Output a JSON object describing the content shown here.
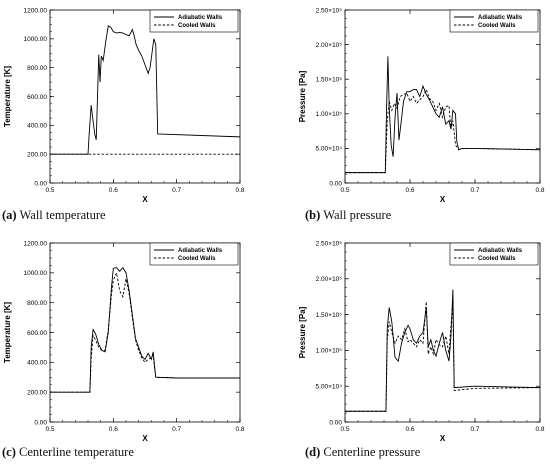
{
  "colors": {
    "adiabatic": "#000000",
    "cooled": "#000000",
    "axis": "#000000"
  },
  "panels": [
    {
      "tag": "(a)",
      "title": "Wall temperature"
    },
    {
      "tag": "(b)",
      "title": "Wall pressure"
    },
    {
      "tag": "(c)",
      "title": "Centerline temperature"
    },
    {
      "tag": "(d)",
      "title": "Centerline pressure"
    }
  ],
  "chart_data": [
    {
      "type": "line",
      "title": "",
      "xlabel": "X",
      "ylabel": "Temperature [K]",
      "xlim": [
        0.5,
        0.8
      ],
      "ylim": [
        0,
        1200
      ],
      "xticks": [
        0.5,
        0.6,
        0.7,
        0.8
      ],
      "xtick_labels": [
        "0.5",
        "0.6",
        "0.7",
        "0.8"
      ],
      "yticks": [
        0,
        200,
        400,
        600,
        800,
        1000,
        1200
      ],
      "ytick_labels": [
        "0.00",
        "200.00",
        "400.00",
        "600.00",
        "800.00",
        "1000.00",
        "1200.00"
      ],
      "legend": "top-right",
      "series": [
        {
          "name": "Adiabatic Walls",
          "style": "solid",
          "x": [
            0.5,
            0.56,
            0.562,
            0.565,
            0.568,
            0.571,
            0.573,
            0.575,
            0.577,
            0.579,
            0.581,
            0.584,
            0.588,
            0.592,
            0.596,
            0.6,
            0.605,
            0.61,
            0.615,
            0.62,
            0.625,
            0.63,
            0.633,
            0.636,
            0.64,
            0.645,
            0.65,
            0.655,
            0.658,
            0.661,
            0.664,
            0.667,
            0.67,
            0.8
          ],
          "y": [
            200,
            200,
            350,
            540,
            430,
            330,
            300,
            600,
            890,
            700,
            880,
            850,
            980,
            1090,
            1080,
            1050,
            1040,
            1045,
            1040,
            1030,
            1020,
            1065,
            1020,
            960,
            920,
            880,
            820,
            760,
            800,
            900,
            1000,
            960,
            340,
            320
          ]
        },
        {
          "name": "Cooled Walls",
          "style": "dashed",
          "x": [
            0.5,
            0.8
          ],
          "y": [
            200,
            200
          ]
        }
      ]
    },
    {
      "type": "line",
      "title": "",
      "xlabel": "X",
      "ylabel": "Pressure [Pa]",
      "xlim": [
        0.5,
        0.8
      ],
      "ylim": [
        0,
        250000
      ],
      "xticks": [
        0.5,
        0.6,
        0.7,
        0.8
      ],
      "xtick_labels": [
        "0.5",
        "0.6",
        "0.7",
        "0.8"
      ],
      "yticks": [
        0,
        50000,
        100000,
        150000,
        200000,
        250000
      ],
      "ytick_labels": [
        "0.00",
        "5.00×10⁴",
        "1.00×10⁵",
        "1.50×10⁵",
        "2.00×10⁵",
        "2.50×10⁵"
      ],
      "legend": "top-right",
      "series": [
        {
          "name": "Adiabatic Walls",
          "style": "solid",
          "x": [
            0.5,
            0.562,
            0.564,
            0.566,
            0.568,
            0.571,
            0.574,
            0.577,
            0.58,
            0.583,
            0.586,
            0.59,
            0.595,
            0.6,
            0.605,
            0.61,
            0.615,
            0.62,
            0.625,
            0.63,
            0.635,
            0.64,
            0.645,
            0.65,
            0.655,
            0.66,
            0.663,
            0.666,
            0.67,
            0.672,
            0.675,
            0.68,
            0.7,
            0.8
          ],
          "y": [
            15000,
            15000,
            110000,
            183000,
            110000,
            55000,
            38000,
            95000,
            130000,
            62000,
            85000,
            118000,
            132000,
            132000,
            135000,
            135000,
            125000,
            140000,
            128000,
            120000,
            110000,
            100000,
            95000,
            110000,
            85000,
            90000,
            78000,
            105000,
            100000,
            60000,
            48000,
            50000,
            50000,
            48000
          ]
        },
        {
          "name": "Cooled Walls",
          "style": "dashed",
          "x": [
            0.5,
            0.562,
            0.565,
            0.568,
            0.572,
            0.576,
            0.58,
            0.585,
            0.59,
            0.595,
            0.6,
            0.605,
            0.61,
            0.615,
            0.62,
            0.625,
            0.63,
            0.635,
            0.64,
            0.645,
            0.65,
            0.655,
            0.66,
            0.663,
            0.666,
            0.67,
            0.675,
            0.68,
            0.7,
            0.8
          ],
          "y": [
            15000,
            15000,
            90000,
            118000,
            105000,
            115000,
            108000,
            125000,
            128000,
            130000,
            118000,
            125000,
            115000,
            120000,
            125000,
            135000,
            122000,
            118000,
            105000,
            115000,
            95000,
            110000,
            112000,
            78000,
            90000,
            55000,
            48000,
            50000,
            50000,
            48000
          ]
        }
      ]
    },
    {
      "type": "line",
      "title": "",
      "xlabel": "X",
      "ylabel": "Temperature [K]",
      "xlim": [
        0.5,
        0.8
      ],
      "ylim": [
        0,
        1200
      ],
      "xticks": [
        0.5,
        0.6,
        0.7,
        0.8
      ],
      "xtick_labels": [
        "0.5",
        "0.6",
        "0.7",
        "0.8"
      ],
      "yticks": [
        0,
        200,
        400,
        600,
        800,
        1000,
        1200
      ],
      "ytick_labels": [
        "0.00",
        "200.00",
        "400.00",
        "600.00",
        "800.00",
        "1000.00",
        "1200.00"
      ],
      "legend": "top-right",
      "series": [
        {
          "name": "Adiabatic Walls",
          "style": "solid",
          "x": [
            0.5,
            0.563,
            0.565,
            0.568,
            0.572,
            0.577,
            0.582,
            0.587,
            0.592,
            0.597,
            0.6,
            0.605,
            0.61,
            0.615,
            0.62,
            0.625,
            0.63,
            0.635,
            0.64,
            0.645,
            0.65,
            0.655,
            0.66,
            0.663,
            0.665,
            0.667,
            0.7,
            0.8
          ],
          "y": [
            200,
            200,
            500,
            620,
            590,
            520,
            480,
            470,
            600,
            900,
            1030,
            1035,
            1010,
            1035,
            1000,
            880,
            720,
            560,
            500,
            440,
            420,
            460,
            420,
            470,
            380,
            300,
            295,
            295
          ]
        },
        {
          "name": "Cooled Walls",
          "style": "dashed",
          "x": [
            0.5,
            0.563,
            0.565,
            0.568,
            0.572,
            0.577,
            0.582,
            0.587,
            0.592,
            0.597,
            0.6,
            0.605,
            0.61,
            0.615,
            0.62,
            0.625,
            0.63,
            0.635,
            0.64,
            0.645,
            0.65,
            0.655,
            0.66,
            0.663,
            0.665,
            0.667,
            0.7,
            0.8
          ],
          "y": [
            200,
            200,
            420,
            580,
            550,
            500,
            480,
            480,
            620,
            850,
            950,
            1000,
            880,
            840,
            960,
            860,
            700,
            550,
            480,
            430,
            400,
            420,
            430,
            450,
            360,
            300,
            295,
            295
          ]
        }
      ]
    },
    {
      "type": "line",
      "title": "",
      "xlabel": "X",
      "ylabel": "Pressure [Pa]",
      "xlim": [
        0.5,
        0.8
      ],
      "ylim": [
        0,
        250000
      ],
      "xticks": [
        0.5,
        0.6,
        0.7,
        0.8
      ],
      "xtick_labels": [
        "0.5",
        "0.6",
        "0.7",
        "0.8"
      ],
      "yticks": [
        0,
        50000,
        100000,
        150000,
        200000,
        250000
      ],
      "ytick_labels": [
        "0.00",
        "5.00×10⁴",
        "1.00×10⁵",
        "1.50×10⁵",
        "2.00×10⁵",
        "2.50×10⁵"
      ],
      "legend": "top-right",
      "series": [
        {
          "name": "Adiabatic Walls",
          "style": "solid",
          "x": [
            0.5,
            0.563,
            0.565,
            0.568,
            0.572,
            0.577,
            0.582,
            0.587,
            0.592,
            0.597,
            0.6,
            0.605,
            0.61,
            0.615,
            0.62,
            0.625,
            0.628,
            0.632,
            0.636,
            0.64,
            0.645,
            0.65,
            0.655,
            0.66,
            0.663,
            0.666,
            0.668,
            0.7,
            0.8
          ],
          "y": [
            15000,
            15000,
            130000,
            160000,
            140000,
            90000,
            85000,
            110000,
            125000,
            135000,
            130000,
            115000,
            110000,
            120000,
            125000,
            160000,
            105000,
            115000,
            100000,
            92000,
            110000,
            125000,
            100000,
            85000,
            120000,
            185000,
            48000,
            50000,
            48000
          ]
        },
        {
          "name": "Cooled Walls",
          "style": "dashed",
          "x": [
            0.5,
            0.563,
            0.565,
            0.568,
            0.572,
            0.577,
            0.582,
            0.587,
            0.592,
            0.597,
            0.6,
            0.605,
            0.61,
            0.615,
            0.62,
            0.625,
            0.628,
            0.632,
            0.636,
            0.64,
            0.645,
            0.65,
            0.655,
            0.66,
            0.663,
            0.666,
            0.668,
            0.7,
            0.8
          ],
          "y": [
            15000,
            15000,
            115000,
            140000,
            125000,
            110000,
            120000,
            115000,
            130000,
            112000,
            115000,
            110000,
            105000,
            115000,
            110000,
            168000,
            95000,
            105000,
            95000,
            115000,
            108000,
            105000,
            120000,
            95000,
            135000,
            160000,
            44000,
            47000,
            48000
          ]
        }
      ]
    }
  ]
}
